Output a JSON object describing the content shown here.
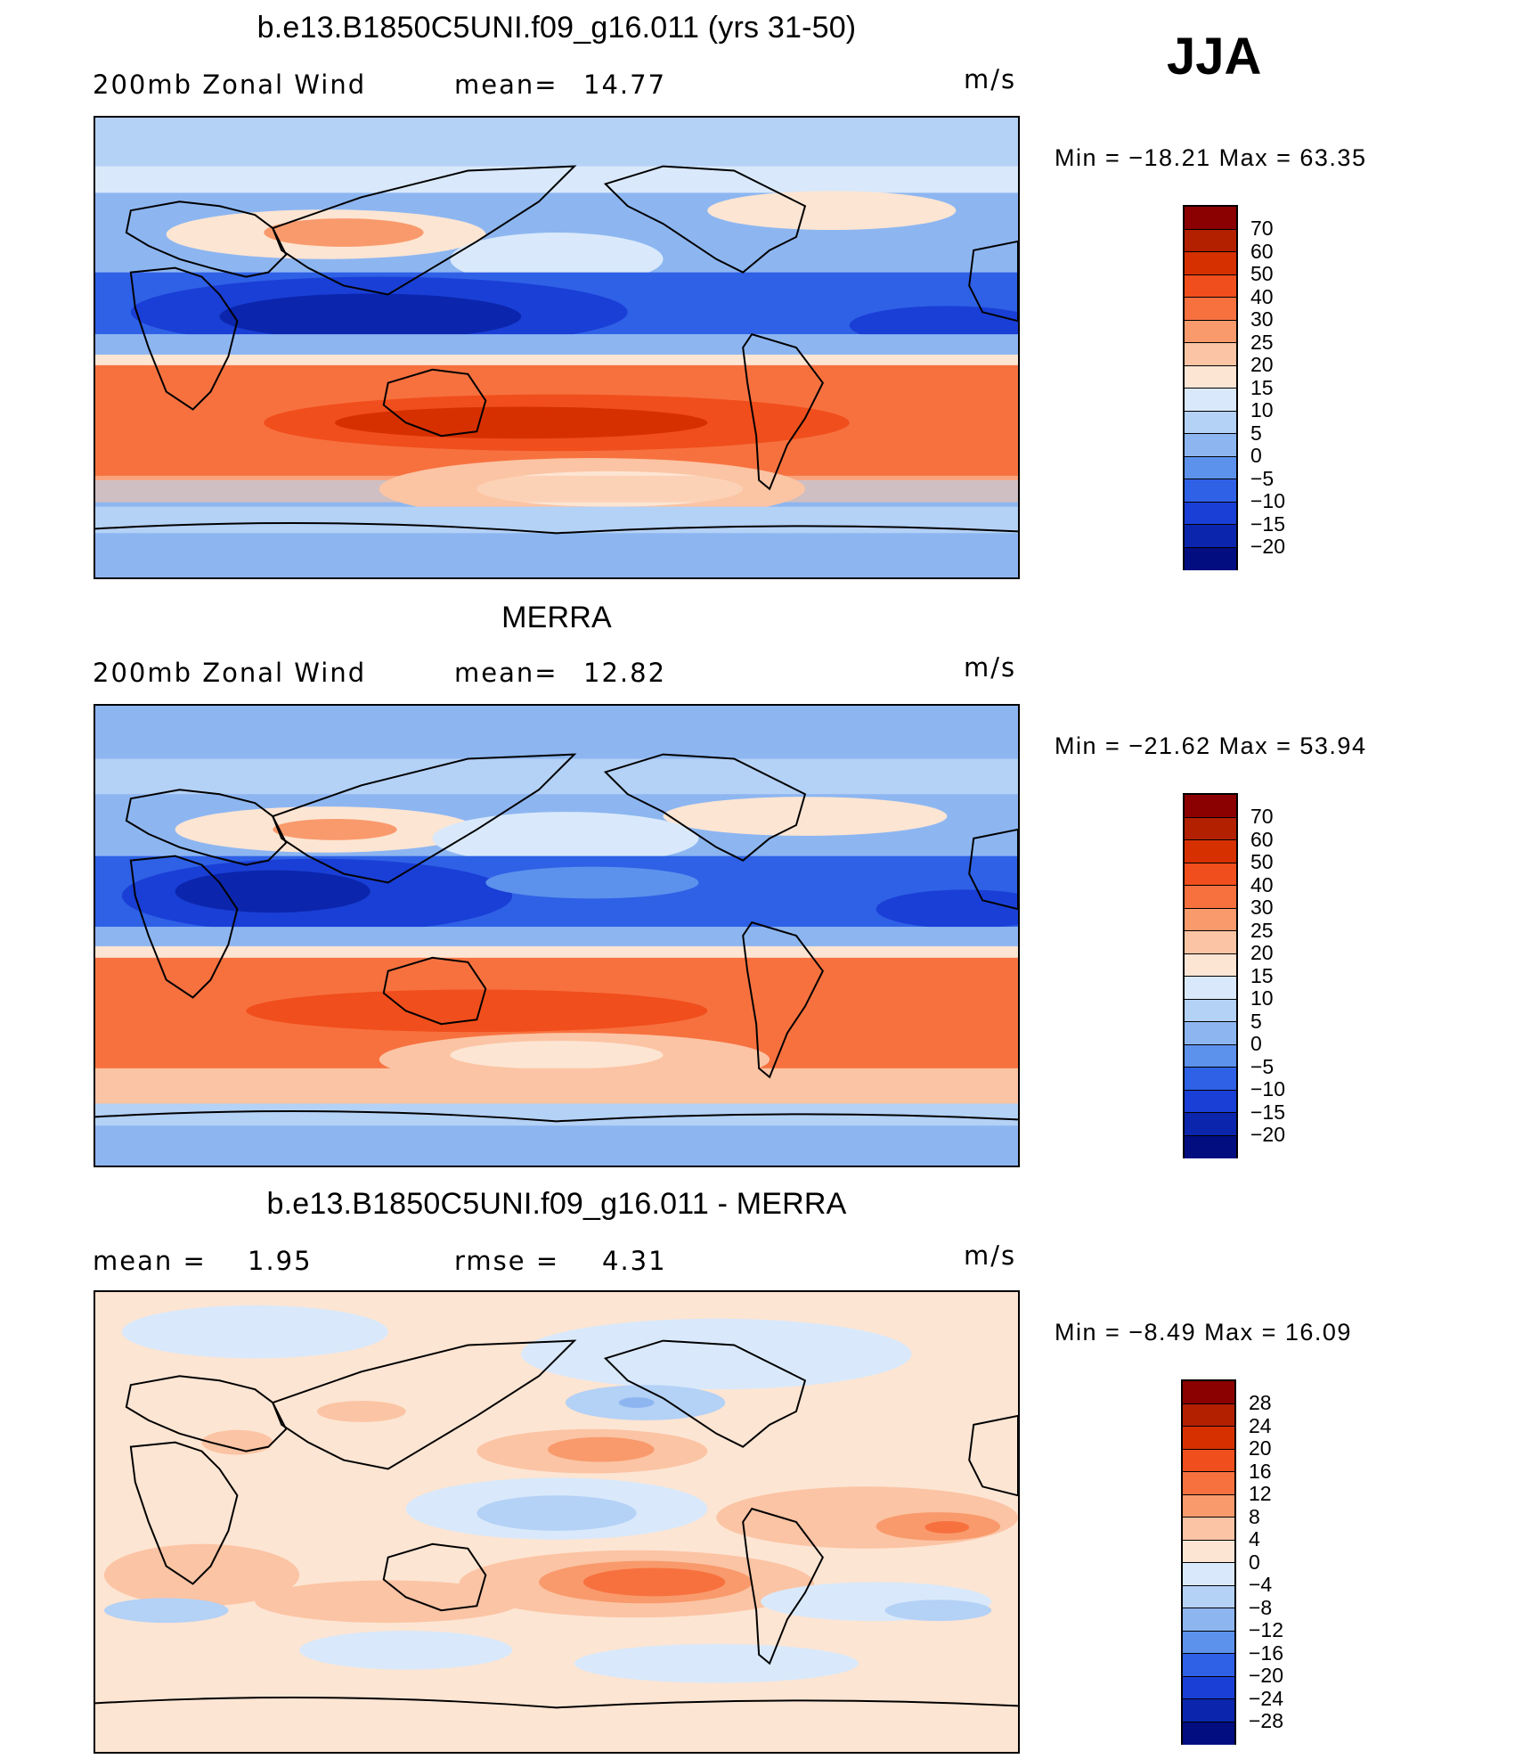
{
  "season": "JJA",
  "panels": [
    {
      "title": "b.e13.B1850C5UNI.f09_g16.011 (yrs 31-50)",
      "left_label": "200mb Zonal Wind",
      "stat_label": "mean=",
      "stat_value": "14.77",
      "units": "m/s",
      "minmax": "Min = −18.21 Max = 63.35",
      "colorbar_labels": [
        "70",
        "60",
        "50",
        "40",
        "30",
        "25",
        "20",
        "15",
        "10",
        "5",
        "0",
        "−5",
        "−10",
        "−15",
        "−20"
      ]
    },
    {
      "title": "MERRA",
      "left_label": "200mb Zonal Wind",
      "stat_label": "mean=",
      "stat_value": "12.82",
      "units": "m/s",
      "minmax": "Min = −21.62 Max = 53.94",
      "colorbar_labels": [
        "70",
        "60",
        "50",
        "40",
        "30",
        "25",
        "20",
        "15",
        "10",
        "5",
        "0",
        "−5",
        "−10",
        "−15",
        "−20"
      ]
    },
    {
      "title": "b.e13.B1850C5UNI.f09_g16.011 - MERRA",
      "left_label": "mean =",
      "left_value": "1.95",
      "stat_label": "rmse =",
      "stat_value": "4.31",
      "units": "m/s",
      "minmax": "Min = −8.49 Max = 16.09",
      "colorbar_labels": [
        "28",
        "24",
        "20",
        "16",
        "12",
        "8",
        "4",
        "0",
        "−4",
        "−8",
        "−12",
        "−16",
        "−20",
        "−24",
        "−28"
      ]
    }
  ],
  "colors": {
    "scale16": [
      "#8b0000",
      "#b22000",
      "#d73000",
      "#f04e1c",
      "#f7713f",
      "#f99a6c",
      "#fbc4a4",
      "#fde5d3",
      "#d9e9fb",
      "#b4d1f6",
      "#8db6f1",
      "#5c92ec",
      "#2f61e6",
      "#1a3fd6",
      "#0b26ad",
      "#020d80"
    ]
  }
}
